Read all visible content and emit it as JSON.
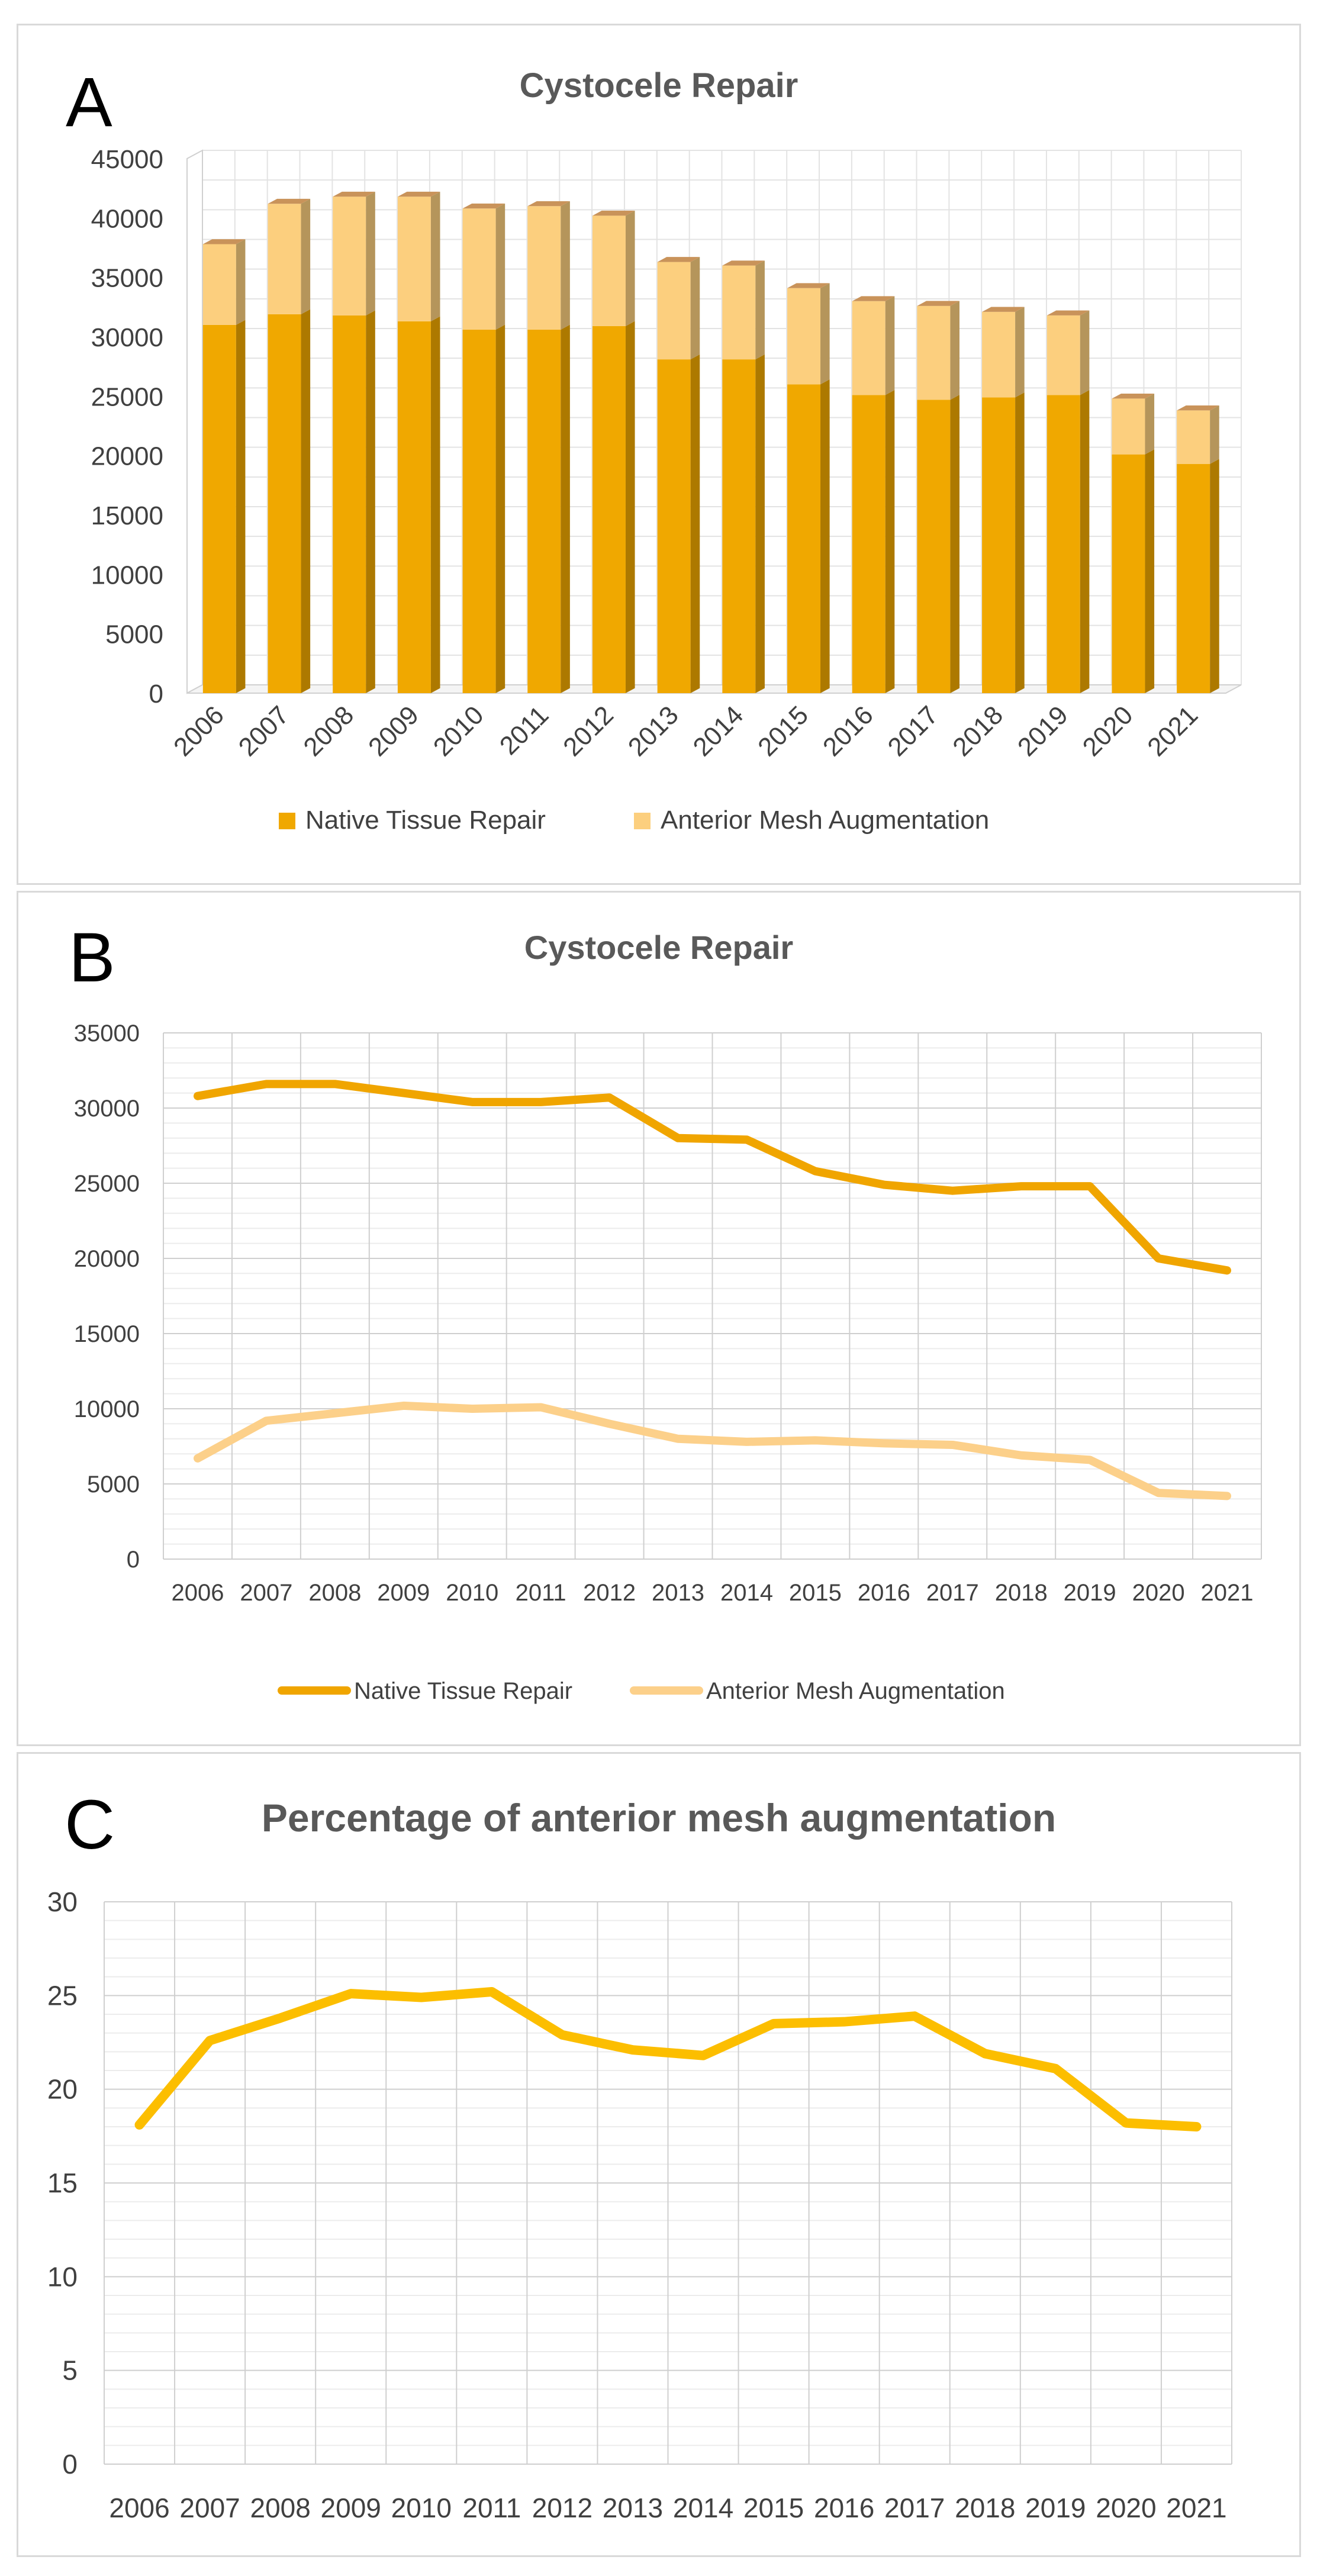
{
  "chart_data": [
    {
      "panel": "A",
      "type": "bar",
      "stacked": true,
      "three_d": true,
      "title": "Cystocele Repair",
      "categories": [
        "2006",
        "2007",
        "2008",
        "2009",
        "2010",
        "2011",
        "2012",
        "2013",
        "2014",
        "2015",
        "2016",
        "2017",
        "2018",
        "2019",
        "2020",
        "2021"
      ],
      "series": [
        {
          "name": "Native Tissue Repair",
          "values": [
            31000,
            31900,
            31800,
            31300,
            30600,
            30600,
            30900,
            28100,
            28100,
            26000,
            25100,
            24700,
            24900,
            25100,
            20100,
            19300
          ]
        },
        {
          "name": "Anterior Mesh Augmentation",
          "values": [
            6800,
            9300,
            10000,
            10500,
            10200,
            10400,
            9300,
            8200,
            7900,
            8100,
            7900,
            7900,
            7200,
            6700,
            4700,
            4500
          ]
        }
      ],
      "y_ticks": [
        "0",
        "5000",
        "10000",
        "15000",
        "20000",
        "25000",
        "30000",
        "35000",
        "40000",
        "45000"
      ],
      "ylim": [
        0,
        45000
      ],
      "grid": true,
      "legend": "bottom",
      "colors": [
        "#f0a800",
        "#fccf7e"
      ]
    },
    {
      "panel": "B",
      "type": "line",
      "title": "Cystocele Repair",
      "categories": [
        "2006",
        "2007",
        "2008",
        "2009",
        "2010",
        "2011",
        "2012",
        "2013",
        "2014",
        "2015",
        "2016",
        "2017",
        "2018",
        "2019",
        "2020",
        "2021"
      ],
      "series": [
        {
          "name": "Native Tissue Repair",
          "values": [
            30800,
            31600,
            31600,
            31000,
            30400,
            30400,
            30700,
            28000,
            27900,
            25800,
            24900,
            24500,
            24800,
            24800,
            20000,
            19200
          ]
        },
        {
          "name": "Anterior Mesh Augmentation",
          "values": [
            6700,
            9200,
            9700,
            10200,
            10000,
            10100,
            9000,
            8000,
            7800,
            7900,
            7700,
            7600,
            6900,
            6600,
            4400,
            4200
          ]
        }
      ],
      "y_ticks": [
        "0",
        "5000",
        "10000",
        "15000",
        "20000",
        "25000",
        "30000",
        "35000"
      ],
      "ylim": [
        0,
        35000
      ],
      "grid": true,
      "legend": "bottom",
      "colors": [
        "#f0a500",
        "#fcd08a"
      ]
    },
    {
      "panel": "C",
      "type": "line",
      "title": "Percentage of anterior mesh augmentation",
      "categories": [
        "2006",
        "2007",
        "2008",
        "2009",
        "2010",
        "2011",
        "2012",
        "2013",
        "2014",
        "2015",
        "2016",
        "2017",
        "2018",
        "2019",
        "2020",
        "2021"
      ],
      "series": [
        {
          "values": [
            18.1,
            22.6,
            23.8,
            25.1,
            24.9,
            25.2,
            22.9,
            22.1,
            21.8,
            23.5,
            23.6,
            23.9,
            21.9,
            21.1,
            18.2,
            18.0
          ]
        }
      ],
      "y_ticks": [
        "0",
        "5",
        "10",
        "15",
        "20",
        "25",
        "30"
      ],
      "ylim": [
        0,
        30
      ],
      "grid": true,
      "colors": [
        "#fcbe00"
      ]
    }
  ]
}
